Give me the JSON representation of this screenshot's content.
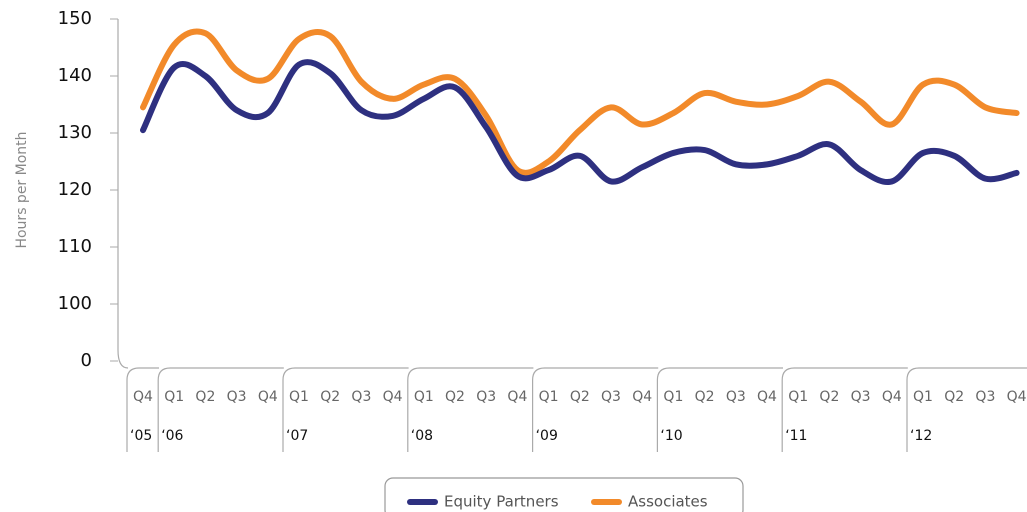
{
  "chart_data": {
    "type": "line",
    "y_axis_label": "Hours per Month",
    "year_groups": [
      {
        "label": "‘05",
        "quarters": [
          "Q4"
        ]
      },
      {
        "label": "‘06",
        "quarters": [
          "Q1",
          "Q2",
          "Q3",
          "Q4"
        ]
      },
      {
        "label": "‘07",
        "quarters": [
          "Q1",
          "Q2",
          "Q3",
          "Q4"
        ]
      },
      {
        "label": "‘08",
        "quarters": [
          "Q1",
          "Q2",
          "Q3",
          "Q4"
        ]
      },
      {
        "label": "‘09",
        "quarters": [
          "Q1",
          "Q2",
          "Q3",
          "Q4"
        ]
      },
      {
        "label": "‘10",
        "quarters": [
          "Q1",
          "Q2",
          "Q3",
          "Q4"
        ]
      },
      {
        "label": "‘11",
        "quarters": [
          "Q1",
          "Q2",
          "Q3",
          "Q4"
        ]
      },
      {
        "label": "‘12",
        "quarters": [
          "Q1",
          "Q2",
          "Q3",
          "Q4"
        ]
      }
    ],
    "series": [
      {
        "name": "Equity Partners",
        "color": "#2e3080",
        "values": [
          130.5,
          141.5,
          140,
          134,
          133.5,
          142,
          140.5,
          134,
          133,
          136,
          138,
          131,
          122.5,
          123.5,
          126,
          121.5,
          124,
          126.5,
          127,
          124.5,
          124.5,
          126,
          128,
          123.5,
          121.5,
          126.5,
          126,
          122,
          123
        ]
      },
      {
        "name": "Associates",
        "color": "#f28a2a",
        "values": [
          134.5,
          145.5,
          147.5,
          141,
          139.5,
          146.5,
          147,
          139,
          136,
          138.5,
          139.5,
          133,
          123.5,
          125,
          130.5,
          134.5,
          131.5,
          133.5,
          137,
          135.5,
          135,
          136.5,
          139,
          135.5,
          131.5,
          138.5,
          138.5,
          134.5,
          133.5
        ]
      }
    ],
    "ylim": [
      0,
      150
    ],
    "yticks": [
      0,
      100,
      110,
      120,
      130,
      140,
      150
    ],
    "legend": "bottom"
  }
}
